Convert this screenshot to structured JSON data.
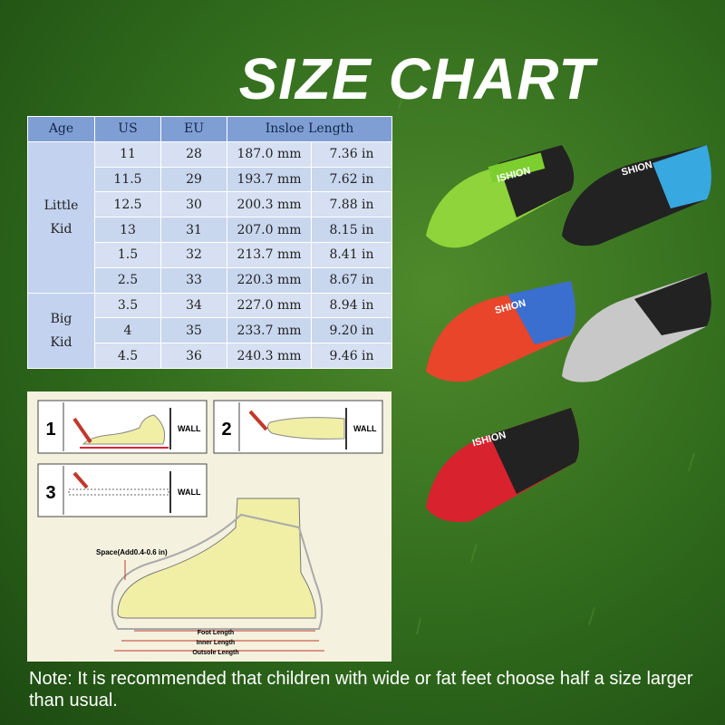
{
  "title": "SIZE CHART",
  "table": {
    "header": [
      "Age",
      "US",
      "EU",
      "Insloe Length"
    ],
    "groups": [
      {
        "age": [
          "Little",
          "Kid"
        ],
        "rows": [
          [
            "11",
            "28",
            "187.0 mm",
            "7.36 in"
          ],
          [
            "11.5",
            "29",
            "193.7 mm",
            "7.62 in"
          ],
          [
            "12.5",
            "30",
            "200.3 mm",
            "7.88 in"
          ],
          [
            "13",
            "31",
            "207.0 mm",
            "8.15 in"
          ],
          [
            "1.5",
            "32",
            "213.7 mm",
            "8.41 in"
          ],
          [
            "2.5",
            "33",
            "220.3 mm",
            "8.67 in"
          ]
        ]
      },
      {
        "age": [
          "Big",
          "Kid"
        ],
        "rows": [
          [
            "3.5",
            "34",
            "227.0 mm",
            "8.94 in"
          ],
          [
            "4",
            "35",
            "233.7 mm",
            "9.20 in"
          ],
          [
            "4.5",
            "36",
            "240.3 mm",
            "9.46 in"
          ]
        ]
      }
    ]
  },
  "diagram": {
    "steps": [
      {
        "number": "1",
        "wall": "WALL"
      },
      {
        "number": "2",
        "wall": "WALL"
      },
      {
        "number": "3",
        "wall": "WALL"
      }
    ],
    "space": "Space(Add0.4-0.6 in)",
    "foot_length": "Foot Length",
    "inner_length": "Inner Length",
    "outsole_length": "Outsole Length"
  },
  "shoes": [
    "ISHION",
    "SHION",
    "SHION",
    "ISHION"
  ],
  "note": "Note: It is recommended that children with wide or fat feet choose half a size larger than usual."
}
